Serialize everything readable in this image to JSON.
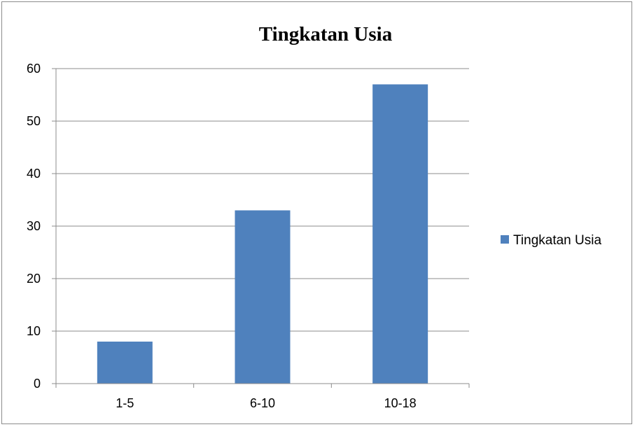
{
  "chart_data": {
    "type": "bar",
    "title": "Tingkatan Usia",
    "categories": [
      "1-5",
      "6-10",
      "10-18"
    ],
    "series": [
      {
        "name": "Tingkatan Usia",
        "values": [
          8,
          33,
          57
        ],
        "color": "#4f81bd"
      }
    ],
    "ylim": [
      0,
      60
    ],
    "yticks": [
      0,
      10,
      20,
      30,
      40,
      50,
      60
    ],
    "grid": true,
    "legend_position": "right"
  }
}
